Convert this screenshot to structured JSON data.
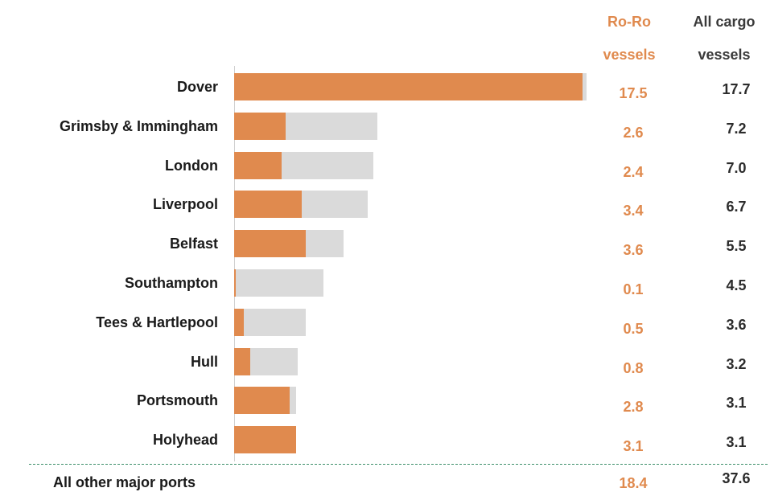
{
  "chart_data": {
    "type": "bar",
    "orientation": "horizontal",
    "columns": {
      "roro_line1": "Ro-Ro",
      "roro_line2": "vessels",
      "all_line1": "All cargo",
      "all_line2": "vessels"
    },
    "categories": [
      "Dover",
      "Grimsby & Immingham",
      "London",
      "Liverpool",
      "Belfast",
      "Southampton",
      "Tees & Hartlepool",
      "Hull",
      "Portsmouth",
      "Holyhead"
    ],
    "series": [
      {
        "values": [
          17.5,
          2.6,
          2.4,
          3.4,
          3.6,
          0.1,
          0.5,
          0.8,
          2.8,
          3.1
        ],
        "color": "#E08A4E"
      },
      {
        "values": [
          17.7,
          7.2,
          7.0,
          6.7,
          5.5,
          4.5,
          3.6,
          3.2,
          3.1,
          3.1
        ],
        "color": "#DADADA"
      }
    ],
    "roro_labels": [
      "17.5",
      "2.6",
      "2.4",
      "3.4",
      "3.6",
      "0.1",
      "0.5",
      "0.8",
      "2.8",
      "3.1"
    ],
    "all_labels": [
      "17.7",
      "7.2",
      "7.0",
      "6.7",
      "5.5",
      "4.5",
      "3.6",
      "3.2",
      "3.1",
      "3.1"
    ],
    "xlim": [
      0,
      17.7
    ],
    "footer": {
      "label": "All other major ports",
      "roro": "18.4",
      "all": "37.6"
    }
  }
}
